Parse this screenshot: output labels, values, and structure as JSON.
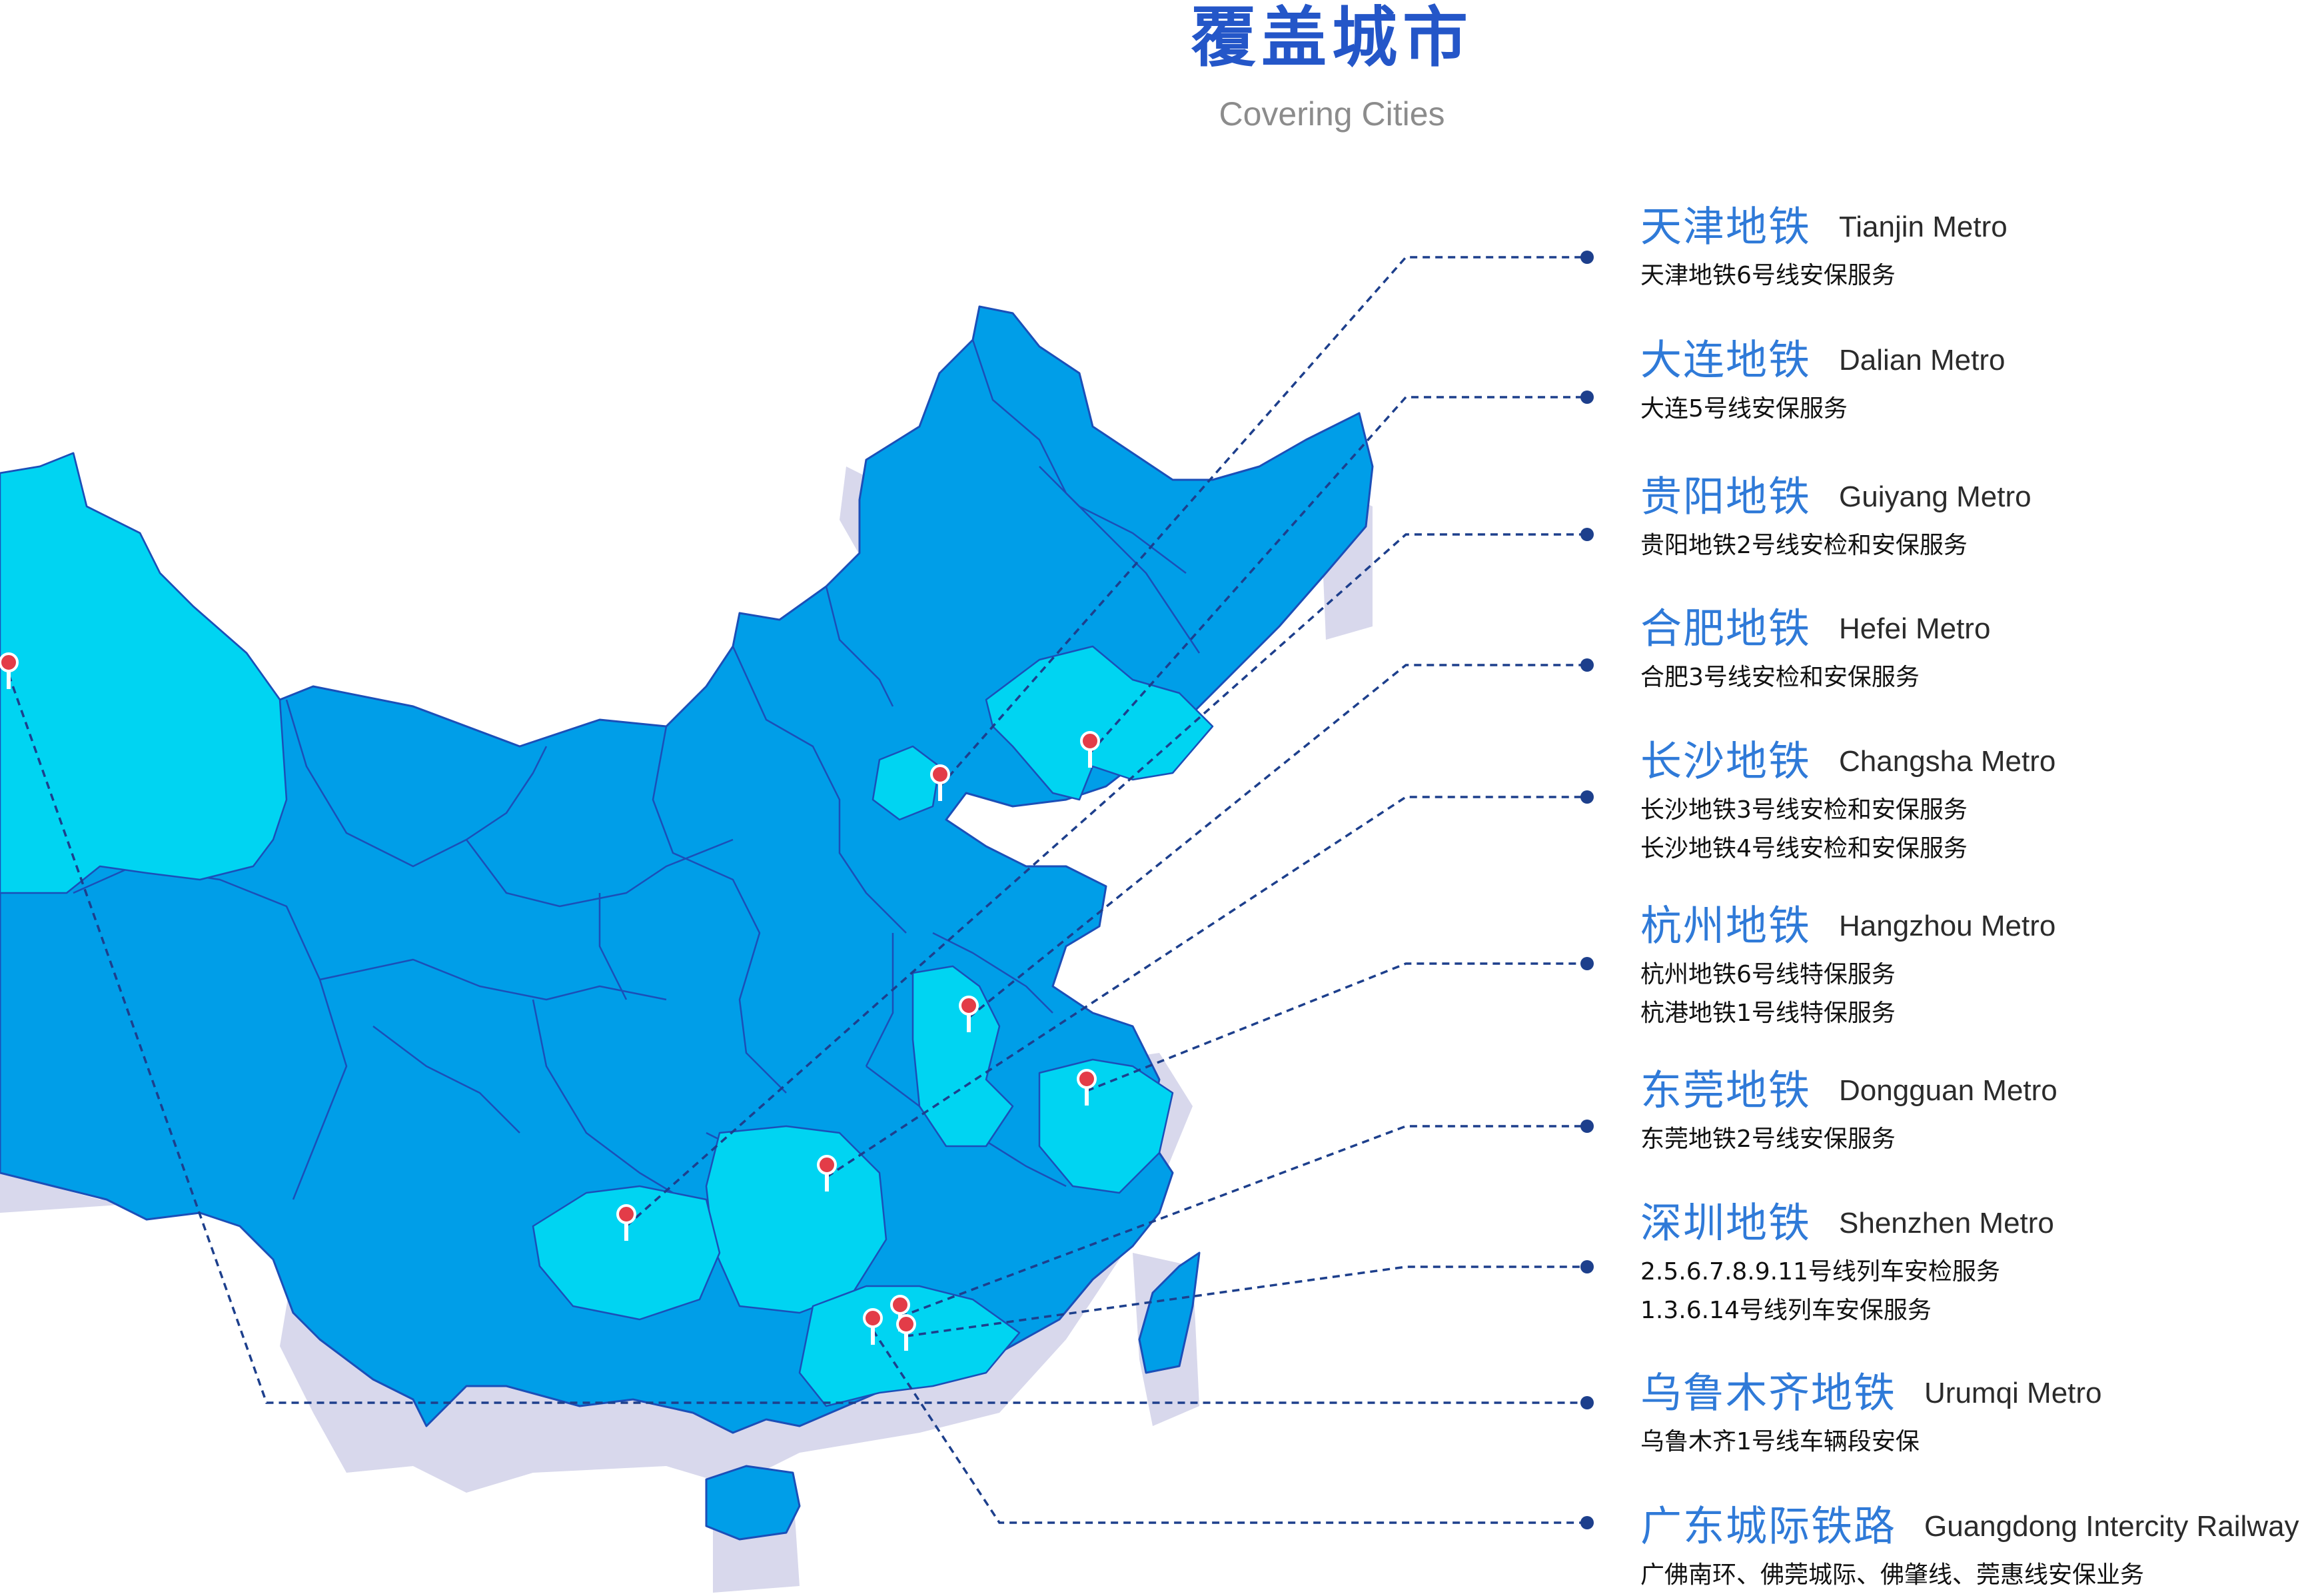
{
  "header": {
    "title": "覆盖城市",
    "subtitle": "Covering Cities"
  },
  "colors": {
    "title": "#2456c8",
    "city_name": "#2f7ad8",
    "map_province": "#009ee8",
    "map_highlight": "#00d4f2",
    "map_shadow": "#d8d8ec",
    "leader_line": "#1d3f8c",
    "pin": "#e33c48"
  },
  "cities": [
    {
      "id": "tianjin",
      "name_cn": "天津地铁",
      "name_en": "Tianjin Metro",
      "services": [
        "天津地铁6号线安保服务"
      ]
    },
    {
      "id": "dalian",
      "name_cn": "大连地铁",
      "name_en": "Dalian Metro",
      "services": [
        "大连5号线安保服务"
      ]
    },
    {
      "id": "guiyang",
      "name_cn": "贵阳地铁",
      "name_en": "Guiyang Metro",
      "services": [
        "贵阳地铁2号线安检和安保服务"
      ]
    },
    {
      "id": "hefei",
      "name_cn": "合肥地铁",
      "name_en": "Hefei Metro",
      "services": [
        "合肥3号线安检和安保服务"
      ]
    },
    {
      "id": "changsha",
      "name_cn": "长沙地铁",
      "name_en": "Changsha Metro",
      "services": [
        "长沙地铁3号线安检和安保服务",
        "长沙地铁4号线安检和安保服务"
      ]
    },
    {
      "id": "hangzhou",
      "name_cn": "杭州地铁",
      "name_en": "Hangzhou Metro",
      "services": [
        "杭州地铁6号线特保服务",
        "杭港地铁1号线特保服务"
      ]
    },
    {
      "id": "dongguan",
      "name_cn": "东莞地铁",
      "name_en": "Dongguan Metro",
      "services": [
        "东莞地铁2号线安保服务"
      ]
    },
    {
      "id": "shenzhen",
      "name_cn": "深圳地铁",
      "name_en": "Shenzhen Metro",
      "services": [
        "2.5.6.7.8.9.11号线列车安检服务",
        "1.3.6.14号线列车安保服务"
      ]
    },
    {
      "id": "urumqi",
      "name_cn": "乌鲁木齐地铁",
      "name_en": "Urumqi Metro",
      "services": [
        "乌鲁木齐1号线车辆段安保"
      ]
    },
    {
      "id": "guangdong",
      "name_cn": "广东城际铁路",
      "name_en": "Guangdong Intercity Railway",
      "services": [
        "广佛南环、佛莞城际、佛肇线、莞惠线安保业务"
      ]
    }
  ]
}
